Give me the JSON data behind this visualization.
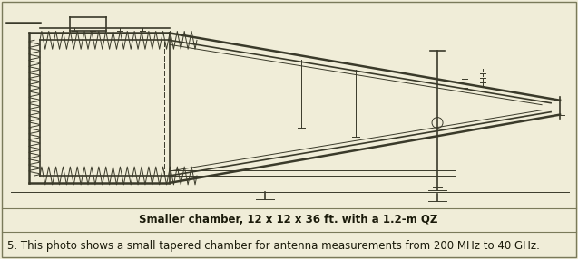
{
  "bg_color": "#f0edd8",
  "drawing_bg": "#f0edd8",
  "border_color": "#7a7a5a",
  "line_color": "#3a3a2a",
  "caption_text": "Smaller chamber, 12 x 12 x 36 ft. with a 1.2-m QZ",
  "figure_text": "5. This photo shows a small tapered chamber for antenna measurements from 200 MHz to 40 GHz.",
  "caption_fontsize": 8.5,
  "figure_fontsize": 8.5,
  "fig_width": 6.37,
  "fig_height": 2.86,
  "dpi": 100
}
